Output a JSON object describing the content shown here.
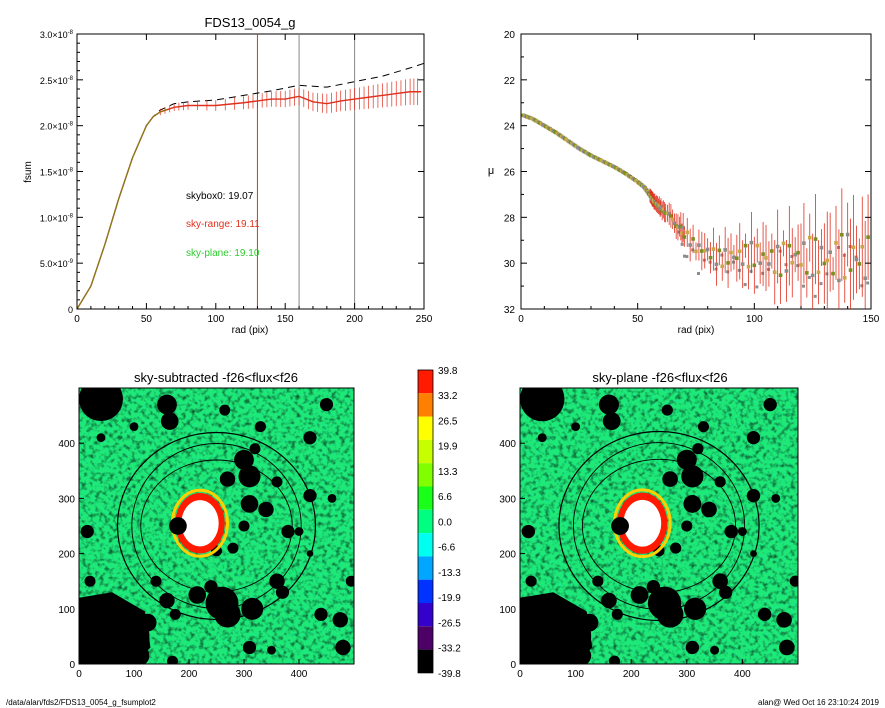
{
  "chart_data": [
    {
      "type": "line",
      "title": "FDS13_0054_g",
      "xlabel": "rad (pix)",
      "ylabel": "fsum",
      "xlim": [
        0,
        250
      ],
      "ylim": [
        0,
        3e-08
      ],
      "x_ticks": [
        "0",
        "50",
        "100",
        "150",
        "200",
        "250"
      ],
      "y_ticks": [
        {
          "mant": "0",
          "exp": ""
        },
        {
          "mant": "5.0×10",
          "exp": "-9"
        },
        {
          "mant": "1.0×10",
          "exp": "-8"
        },
        {
          "mant": "1.5×10",
          "exp": "-8"
        },
        {
          "mant": "2.0×10",
          "exp": "-8"
        },
        {
          "mant": "2.5×10",
          "exp": "-8"
        },
        {
          "mant": "3.0×10",
          "exp": "-8"
        }
      ],
      "vlines": [
        {
          "x": 130,
          "color": "#e0301e"
        },
        {
          "x": 160,
          "color": "#888888"
        },
        {
          "x": 200,
          "color": "#888888"
        }
      ],
      "annotations": [
        {
          "text": "skybox0: 19.07",
          "color": "#000000"
        },
        {
          "text": "sky-range: 19.11",
          "color": "#e0301e"
        },
        {
          "text": "sky-plane: 19.10",
          "color": "#2ecc2e"
        }
      ],
      "series": [
        {
          "style": "dashed",
          "color": "#000000",
          "x": [
            0,
            10,
            20,
            30,
            40,
            50,
            55,
            60,
            70,
            80,
            100,
            120,
            140,
            160,
            180,
            200,
            220,
            240,
            250
          ],
          "y": [
            0,
            2.5e-09,
            7e-09,
            1.2e-08,
            1.65e-08,
            2e-08,
            2.1e-08,
            2.17e-08,
            2.24e-08,
            2.26e-08,
            2.28e-08,
            2.33e-08,
            2.38e-08,
            2.44e-08,
            2.42e-08,
            2.48e-08,
            2.54e-08,
            2.63e-08,
            2.68e-08
          ]
        },
        {
          "style": "solid",
          "color": "#e0301e",
          "errorbars": true,
          "x": [
            0,
            10,
            20,
            30,
            40,
            50,
            55,
            60,
            70,
            80,
            100,
            120,
            130,
            140,
            150,
            160,
            170,
            180,
            190,
            200,
            210,
            220,
            230,
            240,
            248
          ],
          "y": [
            0,
            2.5e-09,
            7e-09,
            1.2e-08,
            1.65e-08,
            2e-08,
            2.1e-08,
            2.15e-08,
            2.2e-08,
            2.22e-08,
            2.22e-08,
            2.25e-08,
            2.27e-08,
            2.29e-08,
            2.29e-08,
            2.32e-08,
            2.26e-08,
            2.24e-08,
            2.27e-08,
            2.29e-08,
            2.31e-08,
            2.33e-08,
            2.35e-08,
            2.37e-08,
            2.37e-08
          ]
        },
        {
          "style": "solid",
          "color": "#6f8b12",
          "x": [
            0,
            10,
            20,
            30,
            40,
            50,
            55,
            60,
            65
          ],
          "y": [
            0,
            2.5e-09,
            7e-09,
            1.2e-08,
            1.65e-08,
            2e-08,
            2.1e-08,
            2.15e-08,
            2.18e-08
          ]
        }
      ]
    },
    {
      "type": "scatter",
      "title": "",
      "xlabel": "rad (pix)",
      "ylabel": "μ",
      "xlim": [
        0,
        150
      ],
      "ylim": [
        32,
        20
      ],
      "x_ticks": [
        "0",
        "50",
        "100",
        "150"
      ],
      "y_ticks": [
        "20",
        "22",
        "24",
        "26",
        "28",
        "30",
        "32"
      ],
      "profile": {
        "x": [
          1,
          5,
          10,
          15,
          20,
          25,
          30,
          35,
          40,
          45,
          50,
          53,
          55,
          57,
          60,
          62,
          65,
          68,
          70,
          75,
          80,
          85,
          90,
          95,
          100,
          105,
          110,
          115,
          120,
          125,
          130,
          135,
          140,
          145,
          150
        ],
        "y": [
          23.55,
          23.7,
          24.0,
          24.3,
          24.65,
          25.0,
          25.3,
          25.55,
          25.8,
          26.1,
          26.45,
          26.7,
          27.0,
          27.3,
          27.6,
          27.8,
          28.1,
          28.4,
          28.7,
          29.3,
          29.5,
          29.8,
          29.7,
          29.7,
          29.6,
          29.8,
          29.9,
          29.7,
          29.7,
          29.7,
          29.8,
          29.9,
          29.6,
          29.8,
          29.9
        ],
        "colors": [
          "#7b8e1e",
          "#c9a84a",
          "#8d8d8d"
        ]
      }
    },
    {
      "type": "heatmap",
      "title": "sky-subtracted -f26<flux<f26",
      "xlim": [
        0,
        500
      ],
      "ylim": [
        0,
        500
      ],
      "x_ticks": [
        "0",
        "100",
        "200",
        "300",
        "400"
      ],
      "y_ticks": [
        "0",
        "100",
        "200",
        "300",
        "400"
      ],
      "colorbar": {
        "labels": [
          "39.8",
          "33.2",
          "26.5",
          "19.9",
          "13.3",
          "6.6",
          "0.0",
          "-6.6",
          "-13.3",
          "-19.9",
          "-26.5",
          "-33.2",
          "-39.8"
        ],
        "colors": [
          "#ff1a00",
          "#ff7f00",
          "#ffff00",
          "#c8ff00",
          "#7fff00",
          "#1aff1a",
          "#00ff80",
          "#00ffee",
          "#00a6ff",
          "#0033ff",
          "#3300cc",
          "#4d0066",
          "#000000"
        ]
      }
    },
    {
      "type": "heatmap",
      "title": "sky-plane -f26<flux<f26",
      "xlim": [
        0,
        500
      ],
      "ylim": [
        0,
        500
      ],
      "x_ticks": [
        "0",
        "100",
        "200",
        "300",
        "400"
      ],
      "y_ticks": [
        "0",
        "100",
        "200",
        "300",
        "400"
      ]
    }
  ],
  "footer": {
    "left": "/data/alan/fds2/FDS13_0054_g_fsumplot2",
    "right": "alan@  Wed Oct 16 23:10:24 2019"
  }
}
